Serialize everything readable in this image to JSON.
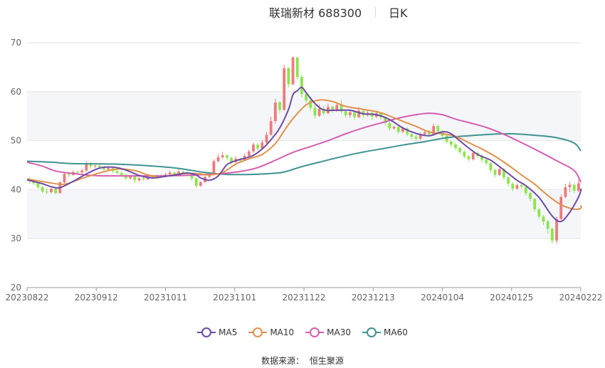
{
  "header": {
    "title": "联瑞新材 688300",
    "period": "日K"
  },
  "source": {
    "label": "数据来源：",
    "value": "恒生聚源"
  },
  "colors": {
    "up": "#ee7b7b",
    "down": "#8ae64b",
    "ma5": "#6e4aa6",
    "ma10": "#e0914b",
    "ma30": "#d45fb0",
    "ma60": "#3f9391",
    "grid": "#e6e6e6",
    "band": "#f5f6fa",
    "axis_text": "#666666"
  },
  "chart_data": {
    "type": "candlestick",
    "title": "联瑞新材 688300",
    "subtitle": "日K",
    "ylim": [
      20,
      70
    ],
    "y_ticks": [
      20,
      30,
      40,
      50,
      60,
      70
    ],
    "x_tick_labels": [
      "20230822",
      "20230912",
      "20231011",
      "20231101",
      "20231122",
      "20231213",
      "20240104",
      "20240125",
      "20240222"
    ],
    "legend_position": "bottom",
    "grid": true,
    "legend": [
      {
        "name": "MA5",
        "color_key": "ma5"
      },
      {
        "name": "MA10",
        "color_key": "ma10"
      },
      {
        "name": "MA30",
        "color_key": "ma30"
      },
      {
        "name": "MA60",
        "color_key": "ma60"
      }
    ],
    "candles": [
      [
        42.0,
        41.8,
        42.5,
        41.2
      ],
      [
        41.8,
        41.3,
        42.1,
        40.9
      ],
      [
        41.3,
        40.5,
        41.5,
        40.2
      ],
      [
        40.5,
        39.6,
        40.7,
        39.3
      ],
      [
        39.6,
        39.5,
        40.3,
        39.1
      ],
      [
        39.5,
        40.2,
        40.5,
        39.2
      ],
      [
        40.2,
        39.3,
        40.4,
        39.0
      ],
      [
        39.3,
        41.5,
        41.7,
        39.2
      ],
      [
        41.5,
        43.2,
        43.6,
        41.3
      ],
      [
        43.2,
        43.0,
        43.6,
        42.6
      ],
      [
        43.0,
        43.6,
        43.9,
        42.8
      ],
      [
        43.6,
        43.5,
        44.0,
        43.1
      ],
      [
        43.5,
        43.9,
        44.3,
        43.3
      ],
      [
        43.9,
        45.2,
        45.8,
        43.6
      ],
      [
        45.2,
        44.8,
        45.6,
        44.3
      ],
      [
        44.8,
        44.9,
        45.3,
        44.4
      ],
      [
        44.9,
        44.6,
        45.2,
        44.2
      ],
      [
        44.6,
        44.1,
        44.8,
        43.7
      ],
      [
        44.1,
        44.4,
        44.7,
        43.8
      ],
      [
        44.4,
        43.8,
        44.6,
        43.4
      ],
      [
        43.8,
        43.4,
        44.1,
        43.1
      ],
      [
        43.4,
        43.0,
        43.7,
        42.6
      ],
      [
        43.0,
        42.3,
        43.3,
        42.0
      ],
      [
        42.3,
        42.7,
        43.1,
        42.0
      ],
      [
        42.7,
        41.9,
        43.0,
        41.3
      ],
      [
        41.9,
        42.3,
        42.6,
        41.6
      ],
      [
        42.3,
        42.1,
        42.6,
        41.8
      ],
      [
        42.1,
        42.6,
        42.9,
        41.9
      ],
      [
        42.6,
        42.4,
        42.9,
        42.1
      ],
      [
        42.4,
        42.9,
        43.1,
        42.2
      ],
      [
        42.9,
        42.7,
        43.2,
        42.4
      ],
      [
        42.7,
        43.1,
        43.4,
        42.5
      ],
      [
        43.1,
        43.5,
        43.9,
        42.9
      ],
      [
        43.5,
        43.2,
        43.8,
        42.9
      ],
      [
        43.2,
        43.7,
        44.1,
        43.0
      ],
      [
        43.7,
        43.4,
        43.9,
        43.1
      ],
      [
        43.4,
        43.3,
        43.7,
        43.0
      ],
      [
        43.3,
        42.3,
        43.4,
        41.8
      ],
      [
        42.3,
        40.8,
        42.5,
        40.3
      ],
      [
        40.8,
        41.5,
        41.8,
        40.5
      ],
      [
        41.5,
        42.6,
        43.0,
        41.4
      ],
      [
        42.6,
        43.3,
        43.6,
        42.3
      ],
      [
        43.3,
        45.8,
        46.2,
        43.2
      ],
      [
        45.8,
        46.6,
        47.3,
        45.5
      ],
      [
        46.6,
        47.0,
        47.7,
        46.2
      ],
      [
        47.0,
        46.5,
        47.2,
        46.0
      ],
      [
        46.5,
        45.6,
        46.7,
        45.1
      ],
      [
        45.6,
        46.3,
        46.8,
        45.4
      ],
      [
        46.3,
        45.9,
        46.5,
        45.5
      ],
      [
        45.9,
        46.9,
        47.4,
        45.8
      ],
      [
        46.9,
        47.8,
        48.2,
        46.6
      ],
      [
        47.8,
        49.2,
        49.6,
        47.5
      ],
      [
        49.2,
        48.4,
        49.5,
        47.9
      ],
      [
        48.4,
        49.6,
        50.2,
        48.1
      ],
      [
        49.6,
        51.2,
        51.8,
        49.4
      ],
      [
        51.2,
        54.0,
        54.9,
        51.0
      ],
      [
        54.0,
        57.8,
        58.6,
        53.5
      ],
      [
        57.8,
        56.3,
        58.1,
        55.7
      ],
      [
        56.3,
        64.8,
        65.5,
        56.1
      ],
      [
        64.8,
        61.5,
        65.0,
        60.9
      ],
      [
        61.5,
        67.0,
        67.2,
        61.3
      ],
      [
        67.0,
        63.0,
        67.1,
        62.5
      ],
      [
        63.0,
        59.5,
        63.4,
        58.8
      ],
      [
        59.5,
        58.2,
        60.1,
        57.6
      ],
      [
        58.2,
        56.7,
        59.0,
        56.1
      ],
      [
        56.7,
        55.1,
        57.3,
        54.5
      ],
      [
        55.1,
        56.5,
        57.4,
        54.8
      ],
      [
        56.5,
        55.6,
        57.1,
        55.1
      ],
      [
        55.6,
        56.9,
        57.6,
        55.4
      ],
      [
        56.9,
        56.2,
        57.2,
        55.6
      ],
      [
        56.2,
        57.3,
        57.7,
        55.9
      ],
      [
        57.3,
        56.0,
        58.4,
        55.5
      ],
      [
        56.0,
        55.2,
        56.4,
        54.7
      ],
      [
        55.2,
        55.8,
        56.4,
        54.7
      ],
      [
        55.8,
        54.8,
        56.1,
        54.3
      ],
      [
        54.8,
        56.1,
        56.8,
        54.6
      ],
      [
        56.1,
        55.2,
        56.4,
        54.8
      ],
      [
        55.2,
        55.7,
        56.3,
        54.9
      ],
      [
        55.7,
        54.9,
        56.1,
        54.3
      ],
      [
        54.9,
        55.6,
        56.1,
        54.6
      ],
      [
        55.6,
        54.8,
        55.9,
        54.3
      ],
      [
        54.8,
        53.6,
        55.0,
        53.1
      ],
      [
        53.6,
        52.5,
        53.9,
        52.0
      ],
      [
        52.5,
        52.8,
        53.1,
        52.2
      ],
      [
        52.8,
        51.8,
        53.2,
        51.4
      ],
      [
        51.8,
        52.5,
        52.9,
        51.5
      ],
      [
        52.5,
        51.3,
        52.8,
        50.9
      ],
      [
        51.3,
        50.8,
        51.6,
        50.3
      ],
      [
        50.8,
        50.4,
        51.2,
        49.9
      ],
      [
        50.4,
        51.3,
        51.6,
        50.1
      ],
      [
        51.3,
        51.7,
        52.2,
        51.0
      ],
      [
        51.7,
        51.3,
        52.1,
        50.9
      ],
      [
        51.3,
        53.0,
        53.5,
        51.1
      ],
      [
        53.0,
        51.9,
        53.3,
        51.5
      ],
      [
        51.9,
        51.0,
        52.2,
        50.6
      ],
      [
        51.0,
        49.8,
        51.3,
        49.4
      ],
      [
        49.8,
        49.2,
        50.1,
        48.7
      ],
      [
        49.2,
        48.5,
        49.6,
        48.1
      ],
      [
        48.5,
        47.7,
        48.8,
        47.2
      ],
      [
        47.7,
        46.8,
        48.0,
        46.3
      ],
      [
        46.8,
        46.2,
        47.1,
        45.8
      ],
      [
        46.2,
        47.5,
        47.9,
        45.9
      ],
      [
        47.5,
        46.9,
        47.8,
        46.5
      ],
      [
        46.9,
        46.1,
        47.2,
        45.6
      ],
      [
        46.1,
        45.4,
        46.4,
        45.0
      ],
      [
        45.4,
        44.0,
        45.6,
        43.5
      ],
      [
        44.0,
        43.0,
        44.3,
        42.5
      ],
      [
        43.0,
        44.2,
        44.5,
        42.8
      ],
      [
        44.2,
        42.5,
        44.4,
        41.9
      ],
      [
        42.5,
        41.2,
        42.7,
        40.7
      ],
      [
        41.2,
        40.2,
        41.5,
        39.7
      ],
      [
        40.2,
        40.9,
        41.3,
        40.0
      ],
      [
        40.9,
        40.6,
        41.2,
        40.2
      ],
      [
        40.6,
        39.3,
        40.8,
        38.8
      ],
      [
        39.3,
        38.1,
        39.5,
        37.6
      ],
      [
        38.1,
        36.0,
        38.3,
        35.5
      ],
      [
        36.0,
        34.5,
        36.2,
        34.0
      ],
      [
        34.5,
        33.5,
        34.8,
        32.8
      ],
      [
        33.5,
        32.0,
        33.8,
        31.0
      ],
      [
        32.0,
        29.6,
        32.3,
        29.0
      ],
      [
        29.6,
        34.0,
        34.5,
        29.0
      ],
      [
        34.0,
        38.5,
        39.0,
        33.8
      ],
      [
        38.5,
        40.5,
        41.2,
        38.2
      ],
      [
        40.5,
        41.0,
        41.6,
        39.5
      ],
      [
        41.0,
        39.8,
        41.3,
        39.3
      ],
      [
        39.8,
        41.3,
        42.0,
        39.5
      ]
    ],
    "ma5": [
      [
        0,
        42.0
      ],
      [
        3,
        41.2
      ],
      [
        5,
        40.6
      ],
      [
        7,
        40.4
      ],
      [
        10,
        41.7
      ],
      [
        13,
        43.2
      ],
      [
        16,
        44.4
      ],
      [
        19,
        44.6
      ],
      [
        22,
        44.0
      ],
      [
        25,
        42.9
      ],
      [
        28,
        42.4
      ],
      [
        31,
        42.7
      ],
      [
        34,
        43.1
      ],
      [
        36,
        43.4
      ],
      [
        38,
        43.0
      ],
      [
        39,
        42.4
      ],
      [
        41,
        41.9
      ],
      [
        43,
        42.8
      ],
      [
        45,
        45.1
      ],
      [
        47,
        45.9
      ],
      [
        49,
        46.4
      ],
      [
        51,
        47.0
      ],
      [
        53,
        48.3
      ],
      [
        55,
        50.2
      ],
      [
        57,
        52.6
      ],
      [
        59,
        56.4
      ],
      [
        60,
        59.4
      ],
      [
        61,
        60.2
      ],
      [
        62,
        60.9
      ],
      [
        63,
        59.8
      ],
      [
        65,
        57.6
      ],
      [
        67,
        56.3
      ],
      [
        70,
        56.2
      ],
      [
        73,
        56.2
      ],
      [
        76,
        55.5
      ],
      [
        79,
        55.3
      ],
      [
        82,
        54.3
      ],
      [
        85,
        52.6
      ],
      [
        88,
        51.5
      ],
      [
        91,
        51.0
      ],
      [
        94,
        51.8
      ],
      [
        96,
        51.4
      ],
      [
        99,
        49.2
      ],
      [
        102,
        47.2
      ],
      [
        105,
        46.0
      ],
      [
        108,
        44.0
      ],
      [
        111,
        41.9
      ],
      [
        113,
        40.8
      ],
      [
        116,
        38.4
      ],
      [
        119,
        34.6
      ],
      [
        121,
        33.5
      ],
      [
        123,
        35.4
      ],
      [
        125,
        38.5
      ],
      [
        127,
        39.8
      ],
      [
        128,
        40.2
      ]
    ],
    "ma10": [
      [
        0,
        42.2
      ],
      [
        4,
        41.5
      ],
      [
        8,
        41.1
      ],
      [
        12,
        42.3
      ],
      [
        16,
        43.4
      ],
      [
        20,
        44.2
      ],
      [
        24,
        43.9
      ],
      [
        27,
        43.0
      ],
      [
        30,
        42.6
      ],
      [
        34,
        43.2
      ],
      [
        38,
        43.3
      ],
      [
        41,
        43.0
      ],
      [
        44,
        43.5
      ],
      [
        47,
        45.2
      ],
      [
        50,
        46.3
      ],
      [
        53,
        47.2
      ],
      [
        56,
        49.4
      ],
      [
        58,
        52.0
      ],
      [
        60,
        54.5
      ],
      [
        63,
        57.3
      ],
      [
        66,
        58.3
      ],
      [
        69,
        58.0
      ],
      [
        72,
        57.0
      ],
      [
        76,
        56.4
      ],
      [
        80,
        55.7
      ],
      [
        84,
        54.3
      ],
      [
        88,
        52.9
      ],
      [
        91,
        51.8
      ],
      [
        94,
        51.4
      ],
      [
        97,
        50.9
      ],
      [
        100,
        49.6
      ],
      [
        103,
        48.3
      ],
      [
        106,
        46.8
      ],
      [
        109,
        45.0
      ],
      [
        112,
        43.0
      ],
      [
        115,
        41.1
      ],
      [
        118,
        38.8
      ],
      [
        121,
        36.9
      ],
      [
        124,
        36.0
      ],
      [
        126,
        36.2
      ],
      [
        128,
        36.8
      ]
    ],
    "ma30": [
      [
        0,
        45.6
      ],
      [
        3,
        44.8
      ],
      [
        6,
        43.8
      ],
      [
        10,
        43.3
      ],
      [
        14,
        42.9
      ],
      [
        18,
        42.8
      ],
      [
        24,
        42.8
      ],
      [
        30,
        42.8
      ],
      [
        36,
        42.9
      ],
      [
        40,
        43.1
      ],
      [
        44,
        43.3
      ],
      [
        48,
        43.7
      ],
      [
        52,
        44.5
      ],
      [
        56,
        46.0
      ],
      [
        60,
        47.6
      ],
      [
        64,
        48.8
      ],
      [
        68,
        50.0
      ],
      [
        72,
        51.4
      ],
      [
        76,
        52.6
      ],
      [
        80,
        53.6
      ],
      [
        84,
        54.6
      ],
      [
        88,
        55.3
      ],
      [
        91,
        55.6
      ],
      [
        94,
        55.3
      ],
      [
        97,
        54.4
      ],
      [
        100,
        53.7
      ],
      [
        104,
        52.7
      ],
      [
        108,
        51.3
      ],
      [
        112,
        49.6
      ],
      [
        116,
        47.8
      ],
      [
        120,
        45.9
      ],
      [
        124,
        43.9
      ],
      [
        128,
        41.5
      ]
    ],
    "ma60": [
      [
        0,
        45.8
      ],
      [
        5,
        45.6
      ],
      [
        10,
        45.3
      ],
      [
        20,
        45.2
      ],
      [
        30,
        44.7
      ],
      [
        35,
        44.2
      ],
      [
        40,
        43.5
      ],
      [
        45,
        43.1
      ],
      [
        50,
        43.1
      ],
      [
        55,
        43.3
      ],
      [
        58,
        43.6
      ],
      [
        62,
        44.7
      ],
      [
        66,
        45.6
      ],
      [
        70,
        46.5
      ],
      [
        75,
        47.5
      ],
      [
        80,
        48.3
      ],
      [
        85,
        49.1
      ],
      [
        90,
        49.8
      ],
      [
        95,
        50.6
      ],
      [
        100,
        51.0
      ],
      [
        105,
        51.3
      ],
      [
        110,
        51.4
      ],
      [
        115,
        51.1
      ],
      [
        120,
        50.6
      ],
      [
        124,
        49.5
      ],
      [
        128,
        47.9
      ]
    ]
  }
}
